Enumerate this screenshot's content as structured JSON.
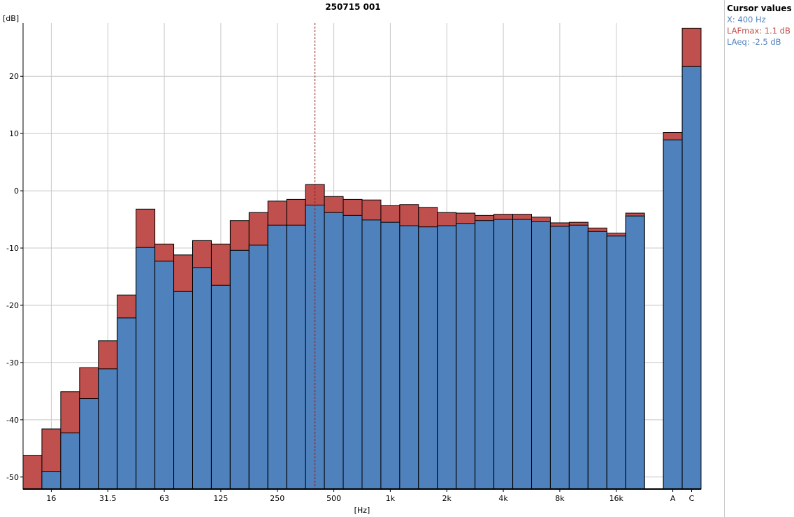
{
  "chart_data": {
    "type": "bar",
    "title": "250715 001",
    "ylabel": "[dB]",
    "xlabel": "[Hz]",
    "ylim": [
      -52.1,
      29.3
    ],
    "yticks": [
      -50,
      -40,
      -30,
      -20,
      -10,
      0,
      10,
      20
    ],
    "grid": true,
    "categories": [
      "12.5",
      "16",
      "20",
      "25",
      "31.5",
      "40",
      "50",
      "63",
      "80",
      "100",
      "125",
      "160",
      "200",
      "250",
      "315",
      "400",
      "500",
      "630",
      "800",
      "1k",
      "1.25k",
      "1.6k",
      "2k",
      "2.5k",
      "3.15k",
      "4k",
      "5k",
      "6.3k",
      "8k",
      "10k",
      "12.5k",
      "16k",
      "20k",
      "A",
      "C"
    ],
    "tick_labels": {
      "16": "16",
      "31.5": "31.5",
      "63": "63",
      "125": "125",
      "250": "250",
      "500": "500",
      "1k": "1k",
      "2k": "2k",
      "4k": "4k",
      "8k": "8k",
      "16k": "16k",
      "A": "A",
      "C": "C"
    },
    "series": [
      {
        "name": "LAFmax",
        "color": "#c0504d",
        "values": [
          -46.2,
          -41.6,
          -35.1,
          -30.9,
          -26.2,
          -18.2,
          -3.2,
          -9.3,
          -11.2,
          -8.7,
          -9.3,
          -5.2,
          -3.8,
          -1.8,
          -1.5,
          1.1,
          -1.0,
          -1.5,
          -1.6,
          -2.6,
          -2.4,
          -2.9,
          -3.8,
          -3.9,
          -4.3,
          -4.1,
          -4.1,
          -4.6,
          -5.6,
          -5.5,
          -6.5,
          -7.4,
          -3.9,
          10.2,
          28.4
        ]
      },
      {
        "name": "LAeq",
        "color": "#4f81bd",
        "values": [
          -53.0,
          -49.0,
          -42.3,
          -36.3,
          -31.1,
          -22.2,
          -9.9,
          -12.3,
          -17.6,
          -13.4,
          -16.5,
          -10.4,
          -9.5,
          -6.0,
          -6.0,
          -2.5,
          -3.8,
          -4.3,
          -5.1,
          -5.5,
          -6.1,
          -6.3,
          -6.1,
          -5.7,
          -5.2,
          -5.0,
          -5.0,
          -5.4,
          -6.2,
          -6.0,
          -7.1,
          -7.9,
          -4.4,
          8.9,
          21.7
        ]
      }
    ],
    "cursor": {
      "category": "400"
    }
  },
  "legend": {
    "heading": "Cursor values",
    "x": "X: 400 Hz",
    "lafmax": "LAFmax: 1.1 dB",
    "laeq": "LAeq: -2.5 dB",
    "x_color": "#4f81bd",
    "lafmax_color": "#c0504d",
    "laeq_color": "#4f81bd"
  }
}
